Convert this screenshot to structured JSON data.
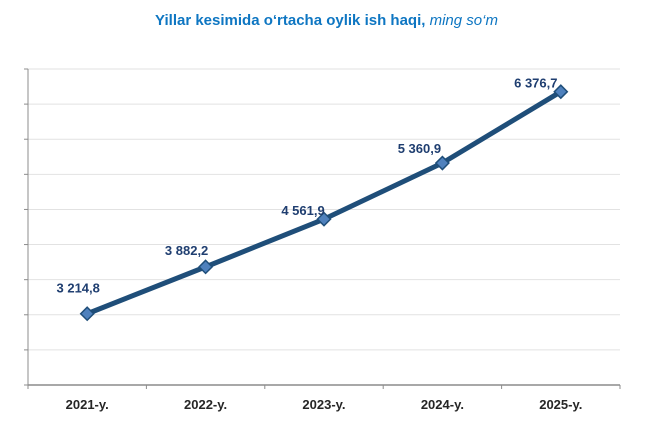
{
  "title": {
    "main": "Yillar kesimida o‘rtacha oylik ish haqi,",
    "suffix": " ming so‘m"
  },
  "chart_data": {
    "type": "line",
    "title": "Yillar kesimida o‘rtacha oylik ish haqi, ming so‘m",
    "categories": [
      "2021-y.",
      "2022-y.",
      "2023-y.",
      "2024-y.",
      "2025-y."
    ],
    "values": [
      3214.8,
      3882.2,
      4561.9,
      5360.9,
      6376.7
    ],
    "value_labels": [
      "3 214,8",
      "3 882,2",
      "4 561,9",
      "5 360,9",
      "6 376,7"
    ],
    "xlabel": "",
    "ylabel": "",
    "ylim": [
      2200,
      6700
    ],
    "gridline_step": 500,
    "grid": "horizontal-only",
    "legend": "none",
    "y_tick_labels_visible": false,
    "colors": {
      "line": "#1F4E79",
      "marker_fill": "#4F81BD",
      "marker_stroke": "#1F4E79",
      "value_label_text": "#1F3E70",
      "category_label_text": "#262626",
      "title_text": "#0E76C2",
      "gridline": "#E2E2E2",
      "axis": "#8C8C8C"
    }
  }
}
